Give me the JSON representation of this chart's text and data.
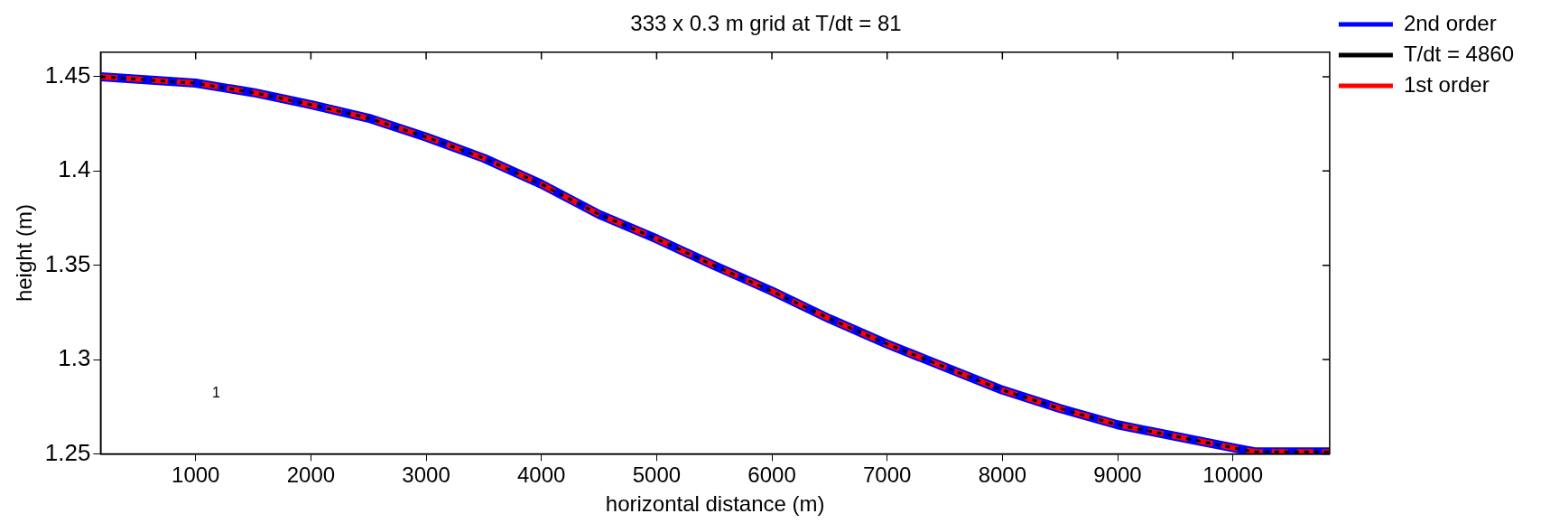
{
  "chart_data": {
    "type": "line",
    "title": "333 x 0.3 m grid at T/dt = 81",
    "xlabel": "horizontal distance (m)",
    "ylabel": "height (m)",
    "x": [
      180,
      1000,
      1500,
      2000,
      2500,
      3000,
      3500,
      4000,
      4500,
      5000,
      5500,
      6000,
      6500,
      7000,
      7500,
      8000,
      8500,
      9000,
      9500,
      10000,
      10200,
      10500,
      10840
    ],
    "series": [
      {
        "name": "2nd order",
        "color": "#0000ff",
        "line_style": "solid",
        "values": [
          1.45,
          1.4466,
          1.4416,
          1.4352,
          1.428,
          1.418,
          1.4068,
          1.393,
          1.377,
          1.364,
          1.3498,
          1.3363,
          1.3216,
          1.3082,
          1.296,
          1.2838,
          1.274,
          1.2654,
          1.2593,
          1.2532,
          1.251,
          1.251,
          1.251
        ]
      },
      {
        "name": "T/dt = 4860",
        "color": "#000000",
        "line_style": "dotted",
        "values": [
          1.45,
          1.4466,
          1.4416,
          1.4352,
          1.428,
          1.418,
          1.4068,
          1.393,
          1.377,
          1.364,
          1.3498,
          1.3363,
          1.3216,
          1.3082,
          1.296,
          1.2838,
          1.274,
          1.2654,
          1.2593,
          1.2532,
          1.251,
          1.251,
          1.251
        ]
      },
      {
        "name": "1st order",
        "color": "#ff0000",
        "line_style": "dashed",
        "values": [
          1.45,
          1.4466,
          1.4416,
          1.4352,
          1.428,
          1.418,
          1.4068,
          1.393,
          1.377,
          1.364,
          1.3498,
          1.3363,
          1.3216,
          1.3082,
          1.296,
          1.2838,
          1.274,
          1.2654,
          1.2593,
          1.2532,
          1.251,
          1.251,
          1.251
        ]
      }
    ],
    "xlim": [
      175,
      10840
    ],
    "xticks": [
      1000,
      2000,
      3000,
      4000,
      5000,
      6000,
      7000,
      8000,
      9000,
      10000
    ],
    "ylim": [
      1.25,
      1.463
    ],
    "yticks": [
      1.25,
      1.3,
      1.35,
      1.4,
      1.45
    ],
    "annotations": [
      "1"
    ],
    "grid": false,
    "legend": "top right",
    "marker": "none"
  }
}
